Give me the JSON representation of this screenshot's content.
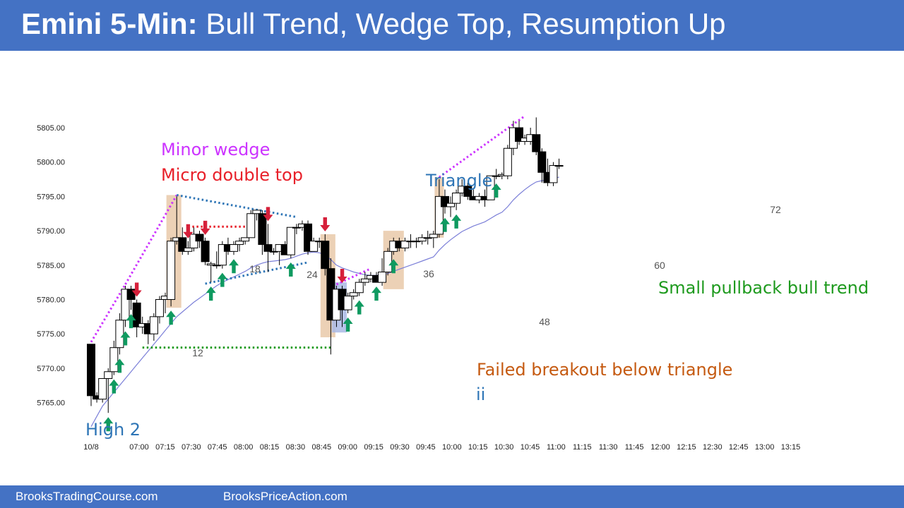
{
  "header": {
    "title_bold": "Emini 5-Min:",
    "title_rest": " Bull Trend, Wedge Top, Resumption Up"
  },
  "footer": {
    "link1": "BrooksTradingCourse.com",
    "link2": "BrooksPriceAction.com"
  },
  "colors": {
    "banner": "#4472c4",
    "wedge_magenta": "#cc33ff",
    "micro_red": "#e8202a",
    "triangle_blue": "#2e75b6",
    "green_text": "#1e9a1e",
    "orange_text": "#c55a11",
    "arrow_green": "#0f9a60",
    "arrow_red": "#d6203a",
    "ema": "#7b7fd8",
    "highlight_tan": "#e9c9a9",
    "highlight_blue": "#a9b9e4"
  },
  "chart_data": {
    "type": "candlestick",
    "symbol": "Emini",
    "timeframe": "5-Min",
    "ylim": [
      5762,
      5808
    ],
    "yticks": [
      "5765.00",
      "5770.00",
      "5775.00",
      "5780.00",
      "5785.00",
      "5790.00",
      "5795.00",
      "5800.00",
      "5805.00"
    ],
    "xticks": [
      "10/8",
      "07:00",
      "07:15",
      "07:30",
      "07:45",
      "08:00",
      "08:15",
      "08:30",
      "08:45",
      "09:00",
      "09:15",
      "09:30",
      "09:45",
      "10:00",
      "10:15",
      "10:30",
      "10:45",
      "11:00",
      "11:15",
      "11:30",
      "11:45",
      "12:00",
      "12:15",
      "12:30",
      "12:45",
      "13:00",
      "13:15"
    ],
    "bars": [
      [
        5773.5,
        5773.5,
        5764.5,
        5766
      ],
      [
        5766,
        5766.5,
        5765,
        5765.5
      ],
      [
        5765.5,
        5768.5,
        5765,
        5768.5
      ],
      [
        5768.5,
        5770,
        5763.5,
        5769.5
      ],
      [
        5769.5,
        5774,
        5769,
        5773
      ],
      [
        5773,
        5778,
        5772,
        5777
      ],
      [
        5777,
        5782,
        5776,
        5781.5
      ],
      [
        5781.5,
        5782,
        5778.5,
        5780
      ],
      [
        5779.5,
        5780,
        5774.5,
        5776
      ],
      [
        5776,
        5777.5,
        5775,
        5776.5
      ],
      [
        5776.5,
        5777,
        5773.5,
        5775
      ],
      [
        5775,
        5778,
        5774,
        5777.5
      ],
      [
        5777.5,
        5780.5,
        5776.5,
        5780
      ],
      [
        5780,
        5781,
        5778,
        5780.5
      ],
      [
        5780,
        5789,
        5779,
        5788.5
      ],
      [
        5788.5,
        5795,
        5788,
        5789
      ],
      [
        5789,
        5790.5,
        5786.5,
        5787
      ],
      [
        5787,
        5788.5,
        5786.5,
        5787.5
      ],
      [
        5787.5,
        5790.5,
        5787,
        5789.5
      ],
      [
        5789.5,
        5790,
        5787.5,
        5788.5
      ],
      [
        5788.5,
        5789,
        5785,
        5785.5
      ],
      [
        5785,
        5785.5,
        5782.5,
        5785.2
      ],
      [
        5785,
        5787,
        5784.5,
        5785
      ],
      [
        5785,
        5788.5,
        5784.5,
        5788
      ],
      [
        5788,
        5789,
        5786.5,
        5787
      ],
      [
        5787,
        5788.5,
        5786.5,
        5788
      ],
      [
        5788,
        5789,
        5787,
        5788.5
      ],
      [
        5788.5,
        5789,
        5788,
        5789
      ],
      [
        5789,
        5793,
        5789,
        5792.5
      ],
      [
        5792.5,
        5793,
        5791.5,
        5793
      ],
      [
        5792.5,
        5793,
        5786.5,
        5788
      ],
      [
        5788,
        5791,
        5784,
        5787
      ],
      [
        5787,
        5787.5,
        5786.5,
        5787
      ],
      [
        5787,
        5788,
        5785,
        5788
      ],
      [
        5788,
        5788.5,
        5786.5,
        5786.5
      ],
      [
        5786.5,
        5790.5,
        5786,
        5790.5
      ],
      [
        5790.5,
        5791,
        5789.5,
        5790.5
      ],
      [
        5790.5,
        5791.5,
        5790,
        5791
      ],
      [
        5791,
        5791.5,
        5786.5,
        5787
      ],
      [
        5787,
        5789,
        5787,
        5788.5
      ],
      [
        5788.5,
        5789,
        5787.5,
        5788.5
      ],
      [
        5788.5,
        5789.5,
        5783.5,
        5784.5
      ],
      [
        5784.5,
        5786,
        5772,
        5777
      ],
      [
        5777,
        5782,
        5776,
        5781.5
      ],
      [
        5781.5,
        5782,
        5776,
        5778.5
      ],
      [
        5778.5,
        5781,
        5778,
        5780.5
      ],
      [
        5780.5,
        5781.5,
        5780,
        5781
      ],
      [
        5781,
        5783,
        5780.5,
        5782.5
      ],
      [
        5782.5,
        5784,
        5782,
        5783
      ],
      [
        5783,
        5784,
        5782.5,
        5783.5
      ],
      [
        5783.5,
        5784,
        5782.5,
        5782.5
      ],
      [
        5782.5,
        5786,
        5782,
        5784
      ],
      [
        5784,
        5787.5,
        5783.5,
        5787
      ],
      [
        5787,
        5789,
        5786.5,
        5788.5
      ],
      [
        5788.5,
        5789,
        5787,
        5787.5
      ],
      [
        5787.5,
        5789,
        5787,
        5788.5
      ],
      [
        5788.5,
        5789.5,
        5787.5,
        5788.5
      ],
      [
        5788.5,
        5789,
        5787.5,
        5788.5
      ],
      [
        5788.5,
        5789.5,
        5788,
        5789
      ],
      [
        5789,
        5790,
        5788,
        5789
      ],
      [
        5789,
        5790,
        5787.5,
        5789.5
      ],
      [
        5789.5,
        5797.5,
        5789,
        5795
      ],
      [
        5795,
        5796,
        5792.5,
        5793.5
      ],
      [
        5793.5,
        5795,
        5792,
        5794
      ],
      [
        5794,
        5796,
        5793,
        5795.5
      ],
      [
        5795.5,
        5797.5,
        5795,
        5796.5
      ],
      [
        5796.5,
        5797,
        5794.5,
        5795
      ],
      [
        5795,
        5796,
        5794.5,
        5794.5
      ],
      [
        5794.5,
        5795.5,
        5794,
        5795
      ],
      [
        5795,
        5796,
        5793.5,
        5794.5
      ],
      [
        5794.5,
        5798,
        5794.5,
        5798
      ],
      [
        5798,
        5799,
        5797.5,
        5798
      ],
      [
        5798,
        5798.5,
        5797.5,
        5798.2
      ],
      [
        5798,
        5802.5,
        5797.5,
        5802
      ],
      [
        5802,
        5806,
        5801,
        5805
      ],
      [
        5805,
        5806,
        5802.5,
        5803
      ],
      [
        5803,
        5804,
        5802.5,
        5803.5
      ],
      [
        5803,
        5805,
        5802.5,
        5804
      ],
      [
        5804,
        5806.5,
        5801,
        5801.5
      ],
      [
        5801.5,
        5802,
        5797,
        5798.5
      ],
      [
        5798.5,
        5800.5,
        5796.5,
        5797
      ],
      [
        5797,
        5800,
        5796.5,
        5799.5
      ],
      [
        5799.5,
        5800.5,
        5799,
        5799.5
      ]
    ],
    "ema20": [
      5761.5,
      5763,
      5764.5,
      5765.5,
      5766.5,
      5767.5,
      5768.5,
      5769.5,
      5770.5,
      5771.5,
      5772.5,
      5773.5,
      5774.5,
      5775.5,
      5776.5,
      5777.5,
      5778.2,
      5778.9,
      5779.6,
      5780.2,
      5780.8,
      5781.4,
      5782,
      5782.5,
      5782.9,
      5783.3,
      5783.7,
      5784.1,
      5784.6,
      5785,
      5785.3,
      5785.5,
      5785.6,
      5785.7,
      5785.8,
      5786,
      5786.3,
      5786.6,
      5786.8,
      5786.9,
      5786.8,
      5786.5,
      5785.8,
      5785,
      5784.6,
      5784.3,
      5784,
      5783.8,
      5783.6,
      5783.5,
      5783.5,
      5783.6,
      5783.8,
      5784.1,
      5784.4,
      5784.7,
      5785,
      5785.3,
      5785.6,
      5785.9,
      5786.2,
      5787.2,
      5788,
      5788.7,
      5789.3,
      5789.9,
      5790.3,
      5790.7,
      5791,
      5791.3,
      5791.8,
      5792.3,
      5792.7,
      5793.5,
      5794.5,
      5795.3,
      5796,
      5796.6,
      5797.1,
      5797.3,
      5797.4,
      5797.6,
      5797.8
    ],
    "annotations": {
      "minor_wedge": "Minor wedge",
      "micro_double_top": "Micro double top",
      "triangle": "Triangle",
      "high_2": "High 2",
      "failed_breakout": "Failed breakout below triangle",
      "ii": "ii",
      "small_pullback": "Small pullback bull trend",
      "bar_numbers": [
        "12",
        "18",
        "24",
        "36",
        "48",
        "60",
        "72"
      ]
    },
    "arrows_up_bar_index": [
      3,
      4,
      5,
      6,
      7,
      14,
      21,
      23,
      25,
      35,
      45,
      47,
      50,
      53,
      62,
      64,
      71
    ],
    "arrows_down_bar_index": [
      8,
      17,
      20,
      31,
      41,
      44
    ]
  }
}
